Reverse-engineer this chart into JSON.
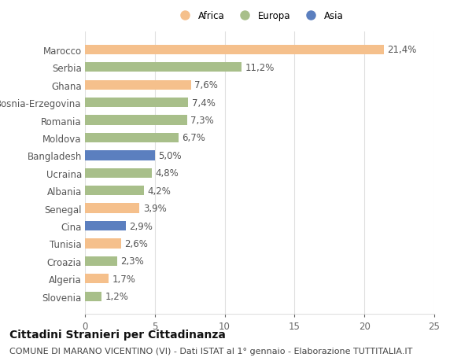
{
  "countries": [
    "Slovenia",
    "Algeria",
    "Croazia",
    "Tunisia",
    "Cina",
    "Senegal",
    "Albania",
    "Ucraina",
    "Bangladesh",
    "Moldova",
    "Romania",
    "Bosnia-Erzegovina",
    "Ghana",
    "Serbia",
    "Marocco"
  ],
  "values": [
    1.2,
    1.7,
    2.3,
    2.6,
    2.9,
    3.9,
    4.2,
    4.8,
    5.0,
    6.7,
    7.3,
    7.4,
    7.6,
    11.2,
    21.4
  ],
  "categories": [
    "Europa",
    "Africa",
    "Europa",
    "Africa",
    "Asia",
    "Africa",
    "Europa",
    "Europa",
    "Asia",
    "Europa",
    "Europa",
    "Europa",
    "Africa",
    "Europa",
    "Africa"
  ],
  "colors": {
    "Africa": "#F5C08C",
    "Europa": "#A8BF8A",
    "Asia": "#5B7FBF"
  },
  "legend_order": [
    "Africa",
    "Europa",
    "Asia"
  ],
  "xlim": [
    0,
    25
  ],
  "xticks": [
    0,
    5,
    10,
    15,
    20,
    25
  ],
  "title": "Cittadini Stranieri per Cittadinanza",
  "subtitle": "COMUNE DI MARANO VICENTINO (VI) - Dati ISTAT al 1° gennaio - Elaborazione TUTTITALIA.IT",
  "background_color": "#ffffff",
  "grid_color": "#e0e0e0",
  "bar_height": 0.55,
  "label_fontsize": 8.5,
  "tick_fontsize": 8.5,
  "title_fontsize": 10,
  "subtitle_fontsize": 8,
  "value_color": "#555555",
  "ylabel_color": "#555555"
}
